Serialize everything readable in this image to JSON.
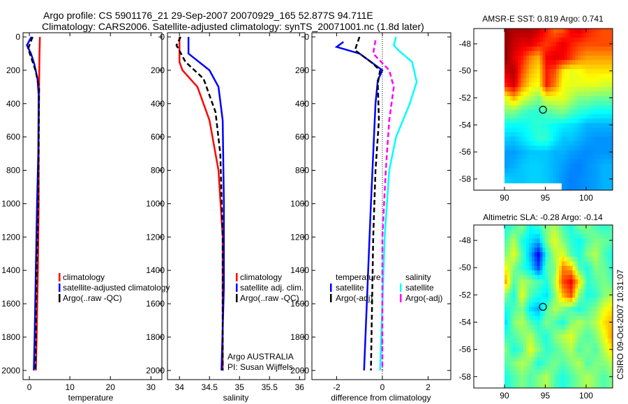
{
  "title_line1": "Argo profile: CS 5901176_21 29-Sep-2007 20070929_165 52.877S 94.711E",
  "title_line2": "Climatology: CARS2006. Satellite-adjusted climatology: synTS_20071001.nc (1.8d later)",
  "footer_stamp": "CSIRO 09-Oct-2007 10:31:07",
  "colors": {
    "red": "#ff0000",
    "blue": "#0000ff",
    "black": "#000000",
    "cyan": "#00ffff",
    "magenta": "#ff00ff"
  },
  "chart_data": [
    {
      "type": "line",
      "id": "temp",
      "xlabel": "temperature",
      "xlim": [
        -1.56,
        32.7
      ],
      "ylim": [
        -25,
        2055
      ],
      "xticks": [
        0,
        10,
        20,
        30
      ],
      "yticks": [
        0,
        200,
        400,
        600,
        800,
        1000,
        1200,
        1400,
        1600,
        1800,
        2000
      ],
      "legend": [
        "climatology",
        "satellite-adjusted climatology",
        "Argo(..raw -QC)"
      ],
      "series": [
        {
          "name": "climatology",
          "color": "red",
          "dash": false,
          "points": [
            [
              2.6,
              0
            ],
            [
              2.5,
              100
            ],
            [
              2.4,
              300
            ],
            [
              2.3,
              600
            ],
            [
              2.3,
              1000
            ],
            [
              2.1,
              1400
            ],
            [
              1.8,
              1800
            ],
            [
              1.6,
              2000
            ]
          ]
        },
        {
          "name": "satellite-adjusted climatology",
          "color": "blue",
          "dash": false,
          "points": [
            [
              0.5,
              0
            ],
            [
              -0.6,
              50
            ],
            [
              0.4,
              100
            ],
            [
              1.2,
              160
            ],
            [
              2.0,
              250
            ],
            [
              2.3,
              350
            ],
            [
              2.2,
              700
            ],
            [
              1.9,
              1000
            ],
            [
              1.6,
              1400
            ],
            [
              1.3,
              1800
            ],
            [
              1.1,
              2000
            ]
          ]
        },
        {
          "name": "Argo(..raw -QC)",
          "color": "black",
          "dash": true,
          "points": [
            [
              0.8,
              0
            ],
            [
              -0.3,
              70
            ],
            [
              1.5,
              200
            ],
            [
              2.4,
              300
            ],
            [
              2.2,
              1000
            ],
            [
              1.8,
              1400
            ],
            [
              1.5,
              2000
            ]
          ]
        }
      ]
    },
    {
      "type": "line",
      "id": "sal",
      "xlabel": "salinity",
      "xlim": [
        33.8,
        36.09
      ],
      "ylim": [
        -25,
        2055
      ],
      "xticks": [
        34,
        34.5,
        35,
        35.5,
        36
      ],
      "yticks": [
        0,
        200,
        400,
        600,
        800,
        1000,
        1200,
        1400,
        1600,
        1800,
        2000
      ],
      "legend": [
        "climatology",
        "satellite adj. clim.",
        "Argo(..raw -QC)"
      ],
      "annotation": [
        "Argo AUSTRALIA",
        "PI: Susan Wijffels"
      ],
      "series": [
        {
          "name": "climatology",
          "color": "red",
          "dash": false,
          "points": [
            [
              34.0,
              0
            ],
            [
              34.0,
              150
            ],
            [
              34.05,
              200
            ],
            [
              34.3,
              300
            ],
            [
              34.5,
              500
            ],
            [
              34.65,
              800
            ],
            [
              34.72,
              1200
            ],
            [
              34.72,
              2000
            ]
          ]
        },
        {
          "name": "satellite adj. clim.",
          "color": "blue",
          "dash": false,
          "points": [
            [
              34.15,
              0
            ],
            [
              34.15,
              100
            ],
            [
              34.5,
              200
            ],
            [
              34.65,
              300
            ],
            [
              34.72,
              500
            ],
            [
              34.74,
              1000
            ],
            [
              34.74,
              1500
            ],
            [
              34.7,
              2000
            ]
          ]
        },
        {
          "name": "Argo(..raw -QC)",
          "color": "black",
          "dash": true,
          "points": [
            [
              34.02,
              0
            ],
            [
              33.95,
              50
            ],
            [
              34.1,
              150
            ],
            [
              34.4,
              250
            ],
            [
              34.6,
              450
            ],
            [
              34.68,
              700
            ],
            [
              34.72,
              1200
            ],
            [
              34.72,
              2000
            ]
          ]
        }
      ]
    },
    {
      "type": "line",
      "id": "diff",
      "xlabel": "difference from climatology",
      "xlim": [
        -3.08,
        2.99
      ],
      "ylim": [
        -25,
        2055
      ],
      "xticks": [
        -2,
        0,
        2
      ],
      "yticks": [
        0,
        200,
        400,
        600,
        800,
        1000,
        1200,
        1400,
        1600,
        1800,
        2000
      ],
      "legend_temp_title": "temperature",
      "legend_sal_title": "salinity",
      "legend": [
        "satellite",
        "Argo(-adj)",
        "satellite",
        "Argo(-adj)"
      ],
      "series": [
        {
          "name": "temperature satellite",
          "color": "blue",
          "dash": false,
          "points": [
            [
              -1.7,
              30
            ],
            [
              -2.0,
              60
            ],
            [
              -1.0,
              100
            ],
            [
              -0.5,
              150
            ],
            [
              0.0,
              200
            ],
            [
              -0.2,
              260
            ],
            [
              -0.3,
              400
            ],
            [
              -0.5,
              1000
            ],
            [
              -0.8,
              2000
            ]
          ]
        },
        {
          "name": "temperature Argo(-adj)",
          "color": "black",
          "dash": true,
          "points": [
            [
              -1.0,
              0
            ],
            [
              -1.2,
              80
            ],
            [
              -0.5,
              150
            ],
            [
              -0.1,
              200
            ],
            [
              -0.2,
              280
            ],
            [
              -0.15,
              500
            ],
            [
              -0.3,
              800
            ],
            [
              -0.4,
              1200
            ],
            [
              -0.5,
              2000
            ]
          ]
        },
        {
          "name": "salinity satellite",
          "color": "cyan",
          "dash": false,
          "points": [
            [
              0.6,
              0
            ],
            [
              0.5,
              50
            ],
            [
              0.7,
              80
            ],
            [
              1.3,
              150
            ],
            [
              1.5,
              270
            ],
            [
              1.2,
              400
            ],
            [
              0.6,
              600
            ],
            [
              0.3,
              800
            ],
            [
              0.1,
              1200
            ],
            [
              -0.1,
              2000
            ]
          ]
        },
        {
          "name": "salinity Argo(-adj)",
          "color": "magenta",
          "dash": true,
          "points": [
            [
              -0.3,
              20
            ],
            [
              -0.4,
              100
            ],
            [
              0.3,
              200
            ],
            [
              0.5,
              300
            ],
            [
              0.3,
              500
            ],
            [
              0.15,
              800
            ],
            [
              0.0,
              1200
            ],
            [
              0.0,
              2000
            ]
          ]
        }
      ]
    },
    {
      "type": "heatmap",
      "id": "sst",
      "title": "AMSR-E SST: 0.819 Argo: 0.741",
      "xlim": [
        86.24,
        103.25
      ],
      "ylim": [
        -58.83,
        -46.87
      ],
      "xticks": [
        90,
        95,
        100
      ],
      "yticks": [
        -48,
        -50,
        -52,
        -54,
        -56,
        -58
      ],
      "lon0": 90,
      "lat0": -46.87,
      "dlon": 1,
      "dlat": 1,
      "argo_position": [
        94.711,
        -52.877
      ],
      "grid": [
        [
          0.98,
          0.95,
          0.95,
          0.95,
          0.92,
          0.85,
          0.78,
          0.8,
          0.88,
          0.9,
          0.85,
          0.82,
          0.8,
          0.8
        ],
        [
          0.98,
          0.93,
          0.9,
          0.9,
          0.85,
          0.82,
          0.85,
          0.9,
          0.85,
          0.82,
          0.8,
          0.8,
          0.8,
          0.8
        ],
        [
          0.98,
          0.9,
          0.85,
          0.75,
          0.7,
          0.88,
          0.9,
          0.88,
          0.82,
          0.75,
          0.72,
          0.72,
          0.72,
          0.72
        ],
        [
          0.92,
          0.95,
          0.8,
          0.7,
          0.65,
          0.85,
          0.8,
          0.65,
          0.6,
          0.62,
          0.65,
          0.65,
          0.65,
          0.65
        ],
        [
          0.85,
          0.92,
          0.75,
          0.65,
          0.62,
          0.85,
          0.75,
          0.62,
          0.6,
          0.6,
          0.6,
          0.6,
          0.58,
          0.58
        ],
        [
          0.6,
          0.7,
          0.6,
          0.55,
          0.5,
          0.6,
          0.6,
          0.6,
          0.55,
          0.5,
          0.5,
          0.48,
          0.48,
          0.48
        ],
        [
          0.5,
          0.5,
          0.45,
          0.42,
          0.42,
          0.45,
          0.48,
          0.5,
          0.45,
          0.42,
          0.4,
          0.38,
          0.38,
          0.38
        ],
        [
          0.38,
          0.38,
          0.38,
          0.4,
          0.42,
          0.4,
          0.38,
          0.36,
          0.35,
          0.33,
          0.3,
          0.3,
          0.3,
          0.3
        ],
        [
          0.33,
          0.32,
          0.35,
          0.38,
          0.42,
          0.42,
          0.36,
          0.32,
          0.32,
          0.3,
          0.28,
          0.27,
          0.27,
          0.27
        ],
        [
          0.28,
          0.28,
          0.3,
          0.32,
          0.32,
          0.32,
          0.3,
          0.3,
          0.28,
          0.27,
          0.26,
          0.27,
          0.27,
          0.27
        ],
        [
          0.28,
          0.3,
          0.32,
          0.33,
          0.33,
          0.32,
          0.3,
          0.28,
          0.26,
          0.25,
          0.27,
          0.28,
          0.3,
          0.3
        ],
        [
          0.33,
          0.32,
          0.32,
          0.33,
          0.33,
          0.32,
          0.3,
          0.27,
          0.25,
          0.26,
          0.27,
          0.28,
          0.3,
          0.3
        ]
      ]
    },
    {
      "type": "heatmap",
      "id": "sla",
      "title": "Altimetric SLA: -0.28 Argo: -0.14",
      "xlim": [
        86.24,
        103.25
      ],
      "ylim": [
        -58.83,
        -46.87
      ],
      "xticks": [
        90,
        95,
        100
      ],
      "yticks": [
        -48,
        -50,
        -52,
        -54,
        -56,
        -58
      ],
      "lon0": 90,
      "lat0": -46.87,
      "dlon": 1,
      "dlat": 1,
      "argo_position": [
        94.711,
        -52.877
      ],
      "grid": [
        [
          0.4,
          0.45,
          0.5,
          0.38,
          0.42,
          0.5,
          0.55,
          0.45,
          0.4,
          0.48,
          0.5,
          0.45,
          0.42,
          0.45
        ],
        [
          0.45,
          0.55,
          0.4,
          0.35,
          0.3,
          0.5,
          0.6,
          0.5,
          0.42,
          0.38,
          0.45,
          0.5,
          0.48,
          0.45
        ],
        [
          0.5,
          0.6,
          0.45,
          0.3,
          0.12,
          0.4,
          0.55,
          0.6,
          0.45,
          0.4,
          0.5,
          0.55,
          0.45,
          0.4
        ],
        [
          0.62,
          0.5,
          0.42,
          0.35,
          0.2,
          0.45,
          0.5,
          0.75,
          0.7,
          0.45,
          0.4,
          0.5,
          0.48,
          0.42
        ],
        [
          0.7,
          0.45,
          0.55,
          0.5,
          0.45,
          0.4,
          0.55,
          0.8,
          0.88,
          0.65,
          0.42,
          0.45,
          0.5,
          0.45
        ],
        [
          0.5,
          0.4,
          0.6,
          0.45,
          0.4,
          0.35,
          0.5,
          0.7,
          0.8,
          0.5,
          0.4,
          0.42,
          0.5,
          0.55
        ],
        [
          0.4,
          0.45,
          0.5,
          0.35,
          0.3,
          0.45,
          0.55,
          0.5,
          0.45,
          0.4,
          0.45,
          0.5,
          0.6,
          0.65
        ],
        [
          0.35,
          0.5,
          0.55,
          0.45,
          0.4,
          0.5,
          0.45,
          0.4,
          0.5,
          0.55,
          0.5,
          0.55,
          0.65,
          0.7
        ],
        [
          0.42,
          0.45,
          0.5,
          0.55,
          0.45,
          0.4,
          0.5,
          0.55,
          0.6,
          0.5,
          0.45,
          0.5,
          0.6,
          0.72
        ],
        [
          0.5,
          0.4,
          0.45,
          0.6,
          0.5,
          0.42,
          0.45,
          0.5,
          0.55,
          0.45,
          0.5,
          0.45,
          0.55,
          0.65
        ],
        [
          0.45,
          0.5,
          0.55,
          0.5,
          0.4,
          0.45,
          0.5,
          0.45,
          0.5,
          0.55,
          0.45,
          0.5,
          0.5,
          0.55
        ],
        [
          0.4,
          0.45,
          0.5,
          0.45,
          0.5,
          0.55,
          0.45,
          0.4,
          0.45,
          0.5,
          0.55,
          0.5,
          0.45,
          0.5
        ]
      ]
    }
  ]
}
